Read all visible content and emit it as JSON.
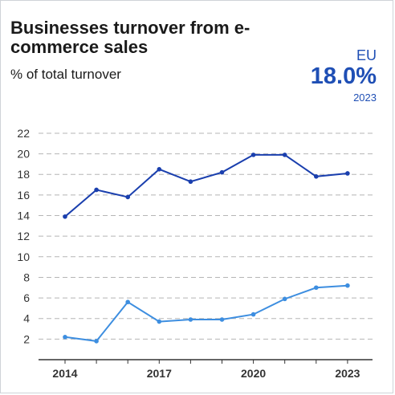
{
  "header": {
    "title": "Businesses turnover from e-commerce sales",
    "subtitle": "% of total turnover",
    "kpi_label": "EU",
    "kpi_value": "18.0%",
    "kpi_year": "2023"
  },
  "colors": {
    "series_dark": "#1a3fae",
    "series_light": "#3d8ee0",
    "grid": "#b5b5b5",
    "accent": "#1f4fb5"
  },
  "chart_data": {
    "type": "line",
    "title": "Businesses turnover from e-commerce sales",
    "subtitle": "% of total turnover",
    "x": [
      2014,
      2015,
      2016,
      2017,
      2018,
      2019,
      2020,
      2021,
      2022,
      2023
    ],
    "x_tick_labels": [
      "2014",
      "2017",
      "2020",
      "2023"
    ],
    "y_tick_labels": [
      "2",
      "4",
      "6",
      "8",
      "10",
      "12",
      "14",
      "16",
      "18",
      "20",
      "22"
    ],
    "ylim": [
      0,
      22
    ],
    "grid": true,
    "series": [
      {
        "values": [
          13.9,
          16.5,
          15.8,
          18.5,
          17.3,
          18.2,
          19.9,
          19.9,
          17.8,
          18.1
        ]
      },
      {
        "values": [
          2.2,
          1.8,
          5.6,
          3.7,
          3.9,
          3.9,
          4.4,
          5.9,
          7.0,
          7.2
        ]
      }
    ]
  }
}
